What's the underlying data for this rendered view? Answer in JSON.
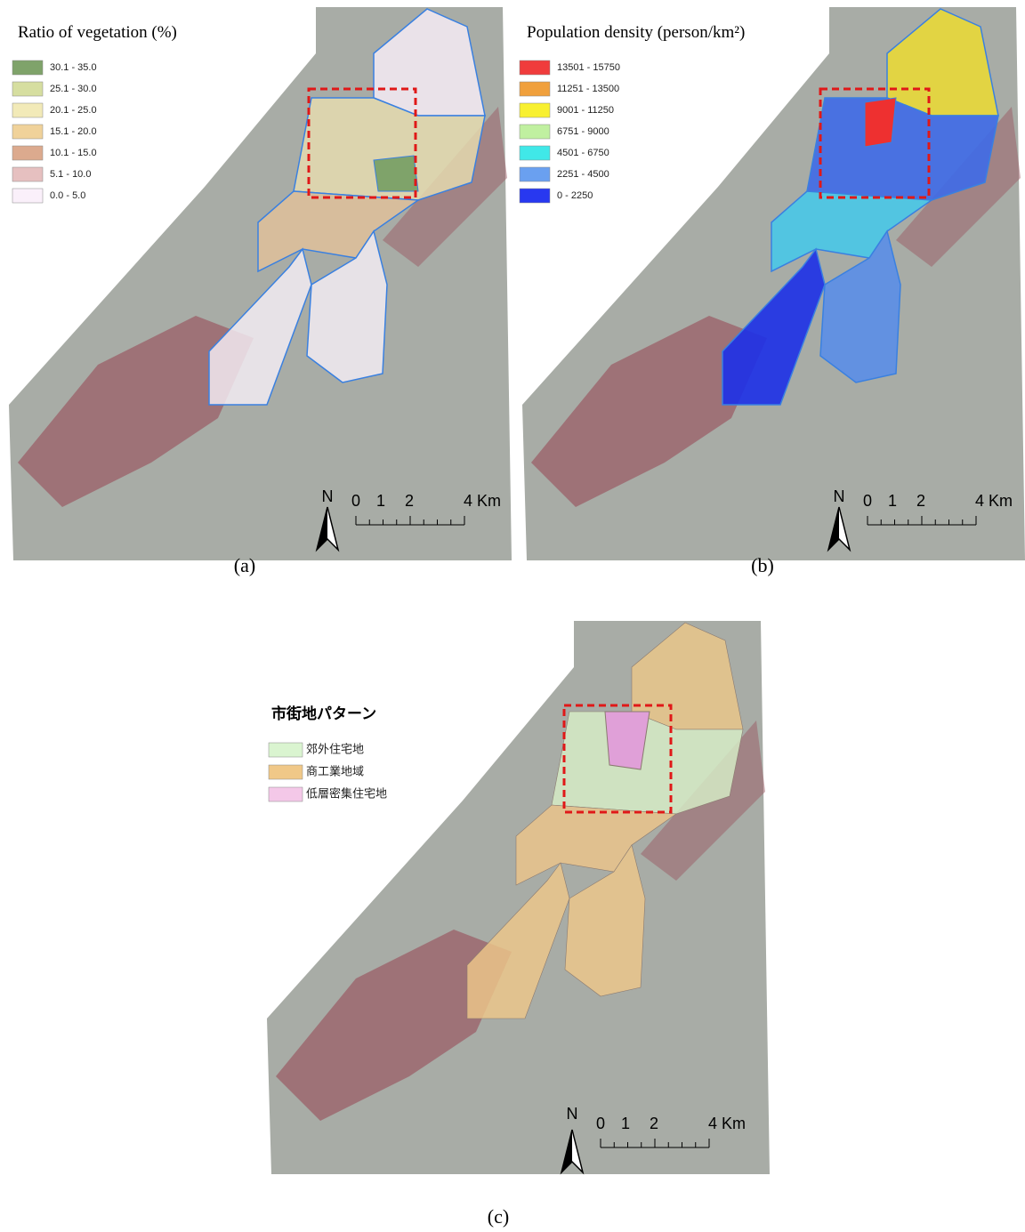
{
  "panels": [
    {
      "label": "(a)",
      "legend": {
        "title": "Ratio of vegetation (%)",
        "items": [
          {
            "label": "30.1 - 35.0",
            "color": "#7fa36a"
          },
          {
            "label": "25.1 - 30.0",
            "color": "#d6dea0"
          },
          {
            "label": "20.1 - 25.0",
            "color": "#f2eab8"
          },
          {
            "label": "15.1 - 20.0",
            "color": "#f0d29a"
          },
          {
            "label": "10.1 - 15.0",
            "color": "#dcaa8e"
          },
          {
            "label": "5.1 - 10.0",
            "color": "#e6c0c0"
          },
          {
            "label": "0.0 - 5.0",
            "color": "#faf0fa"
          }
        ]
      },
      "scale": {
        "north": "N",
        "ticks": [
          "0",
          "1",
          "2",
          "4 Km"
        ]
      }
    },
    {
      "label": "(b)",
      "legend": {
        "title": "Population density (person/km²)",
        "items": [
          {
            "label": "13501 - 15750",
            "color": "#f03c3c"
          },
          {
            "label": "11251 - 13500",
            "color": "#f0a03c"
          },
          {
            "label": "9001 - 11250",
            "color": "#f8f030"
          },
          {
            "label": "6751 - 9000",
            "color": "#c0f0a0"
          },
          {
            "label": "4501 - 6750",
            "color": "#40e8e8"
          },
          {
            "label": "2251 - 4500",
            "color": "#6aa0f0"
          },
          {
            "label": "0 - 2250",
            "color": "#2838f0"
          }
        ]
      },
      "scale": {
        "north": "N",
        "ticks": [
          "0",
          "1",
          "2",
          "4 Km"
        ]
      }
    },
    {
      "label": "(c)",
      "legend": {
        "title": "市街地パターン",
        "items": [
          {
            "label": "郊外住宅地",
            "color": "#daf4d0"
          },
          {
            "label": "商工業地域",
            "color": "#f0c888"
          },
          {
            "label": "低層密集住宅地",
            "color": "#f4c8e8"
          }
        ]
      },
      "scale": {
        "north": "N",
        "ticks": [
          "0",
          "1",
          "2",
          "4 Km"
        ]
      }
    }
  ]
}
